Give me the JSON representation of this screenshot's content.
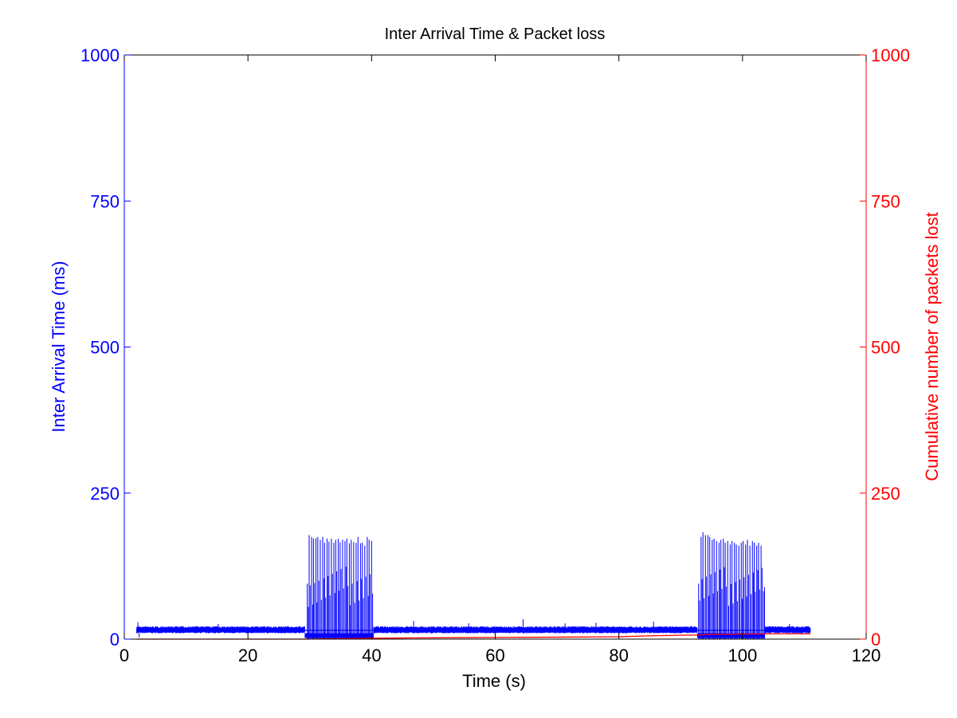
{
  "chart_data": {
    "type": "line",
    "title": "Inter Arrival Time & Packet loss",
    "xlabel": "Time (s)",
    "xlim": [
      0,
      120
    ],
    "xticks": [
      0,
      20,
      40,
      60,
      80,
      100,
      120
    ],
    "grid": false,
    "legend": "none",
    "y_left": {
      "label": "Inter Arrival Time (ms)",
      "color": "#0000ff",
      "ylim": [
        0,
        1000
      ],
      "ticks": [
        0,
        250,
        500,
        750,
        1000
      ]
    },
    "y_right": {
      "label": "Cumulative number of packets lost",
      "color": "#ff0000",
      "ylim": [
        0,
        1000
      ],
      "ticks": [
        0,
        250,
        500,
        750,
        1000
      ]
    },
    "series": [
      {
        "axis": "left",
        "color": "#0000ff",
        "baseline_x": [
          2,
          111
        ],
        "baseline_band": [
          10,
          22
        ],
        "baseline_spikes": [
          [
            2.2,
            29
          ],
          [
            2.4,
            3
          ],
          [
            15.2,
            26
          ],
          [
            46.8,
            31
          ],
          [
            55.7,
            27
          ],
          [
            64.5,
            34
          ],
          [
            71.3,
            27
          ],
          [
            76.3,
            28
          ],
          [
            85.6,
            30
          ],
          [
            107.6,
            26
          ]
        ],
        "burst_intervals": [
          [
            29.2,
            40.3
          ],
          [
            92.7,
            103.6
          ]
        ],
        "burst_peaks_1": [
          [
            29.6,
            95
          ],
          [
            29.9,
            178
          ],
          [
            30.3,
            175
          ],
          [
            30.6,
            172
          ],
          [
            31.0,
            173
          ],
          [
            31.3,
            175
          ],
          [
            31.7,
            170
          ],
          [
            32.1,
            175
          ],
          [
            32.4,
            165
          ],
          [
            32.8,
            172
          ],
          [
            33.1,
            167
          ],
          [
            33.5,
            172
          ],
          [
            33.9,
            165
          ],
          [
            34.2,
            170
          ],
          [
            34.6,
            172
          ],
          [
            34.9,
            166
          ],
          [
            35.3,
            170
          ],
          [
            35.7,
            168
          ],
          [
            36.0,
            172
          ],
          [
            36.4,
            164
          ],
          [
            36.7,
            170
          ],
          [
            37.1,
            166
          ],
          [
            37.5,
            165
          ],
          [
            37.8,
            175
          ],
          [
            38.2,
            164
          ],
          [
            38.5,
            165
          ],
          [
            38.9,
            160
          ],
          [
            39.3,
            175
          ],
          [
            39.6,
            170
          ],
          [
            40.0,
            168
          ]
        ],
        "burst_peaks_2": [
          [
            92.9,
            95
          ],
          [
            93.3,
            175
          ],
          [
            93.6,
            183
          ],
          [
            94.0,
            178
          ],
          [
            94.4,
            178
          ],
          [
            94.7,
            175
          ],
          [
            95.1,
            170
          ],
          [
            95.4,
            172
          ],
          [
            95.8,
            168
          ],
          [
            96.2,
            165
          ],
          [
            96.5,
            170
          ],
          [
            96.9,
            172
          ],
          [
            97.2,
            165
          ],
          [
            97.6,
            168
          ],
          [
            98.0,
            162
          ],
          [
            98.3,
            168
          ],
          [
            98.7,
            165
          ],
          [
            99.0,
            162
          ],
          [
            99.4,
            160
          ],
          [
            99.8,
            165
          ],
          [
            100.1,
            168
          ],
          [
            100.5,
            162
          ],
          [
            100.8,
            170
          ],
          [
            101.2,
            160
          ],
          [
            101.6,
            168
          ],
          [
            101.9,
            165
          ],
          [
            102.3,
            160
          ],
          [
            102.6,
            165
          ],
          [
            103.0,
            160
          ],
          [
            103.4,
            82
          ]
        ]
      },
      {
        "axis": "right",
        "color": "#ff0000",
        "x": [
          2,
          29,
          40.3,
          46,
          55,
          64,
          72,
          80,
          86,
          92.6,
          95,
          100,
          103.6,
          111
        ],
        "y": [
          0,
          0,
          1.5,
          2,
          2.5,
          3,
          3.5,
          4,
          6,
          7,
          8,
          8.5,
          9,
          9
        ]
      }
    ]
  }
}
